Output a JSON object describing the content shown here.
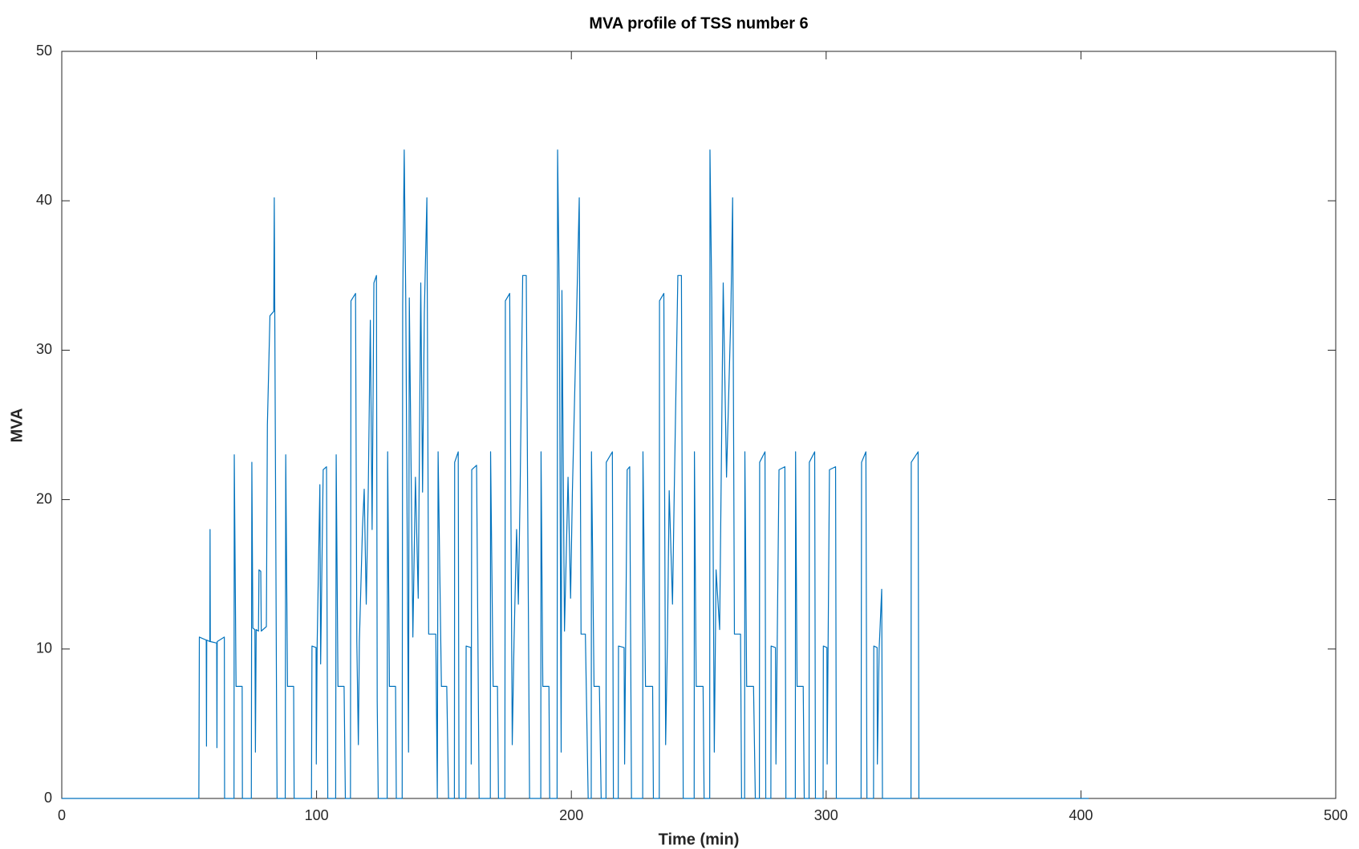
{
  "chart_data": {
    "type": "line",
    "title": "MVA profile of TSS number 6",
    "x_label": "Time (min)",
    "y_label": "MVA",
    "color": "#0072bd",
    "xlim": [
      0,
      500
    ],
    "xticks": [
      0,
      100,
      200,
      300,
      400,
      500
    ],
    "ylim": [
      0,
      50
    ],
    "yticks": [
      0,
      10,
      20,
      30,
      40,
      50
    ],
    "grid": false,
    "box": true,
    "x": [
      0,
      53.8,
      54.0,
      56.7,
      56.8,
      56.9,
      58.1,
      58.2,
      58.3,
      60.8,
      60.9,
      61.0,
      63.8,
      63.9,
      67.6,
      67.7,
      68.4,
      70.8,
      70.9,
      74.4,
      74.6,
      75.0,
      75.8,
      76.0,
      76.3,
      77.2,
      77.4,
      78.1,
      78.3,
      80.3,
      80.7,
      81.7,
      83.2,
      83.4,
      83.6,
      84.3,
      84.5,
      87.7,
      87.9,
      88.6,
      91.0,
      91.2,
      98.0,
      98.2,
      99.8,
      99.9,
      100.2,
      101.3,
      101.6,
      102.6,
      103.9,
      104.4,
      107.5,
      107.7,
      108.4,
      110.8,
      111.3,
      113.3,
      113.5,
      115.3,
      115.8,
      116.4,
      116.8,
      118.0,
      118.7,
      119.5,
      120.3,
      121.1,
      121.8,
      122.5,
      123.5,
      123.8,
      124.2,
      127.7,
      127.9,
      128.6,
      131.0,
      131.3,
      133.6,
      133.8,
      134.4,
      135.0,
      136.1,
      136.4,
      137.8,
      138.8,
      139.9,
      140.9,
      141.6,
      142.3,
      143.3,
      144.0,
      146.8,
      147.4,
      147.7,
      149.0,
      151.1,
      151.8,
      154.1,
      154.2,
      155.6,
      155.9,
      158.6,
      158.7,
      160.6,
      160.7,
      160.9,
      162.8,
      163.8,
      168.2,
      168.3,
      169.3,
      171.0,
      171.4,
      173.9,
      174.1,
      175.8,
      176.8,
      177.5,
      178.5,
      179.2,
      179.9,
      180.9,
      182.3,
      183.6,
      188.0,
      188.1,
      188.8,
      191.2,
      191.5,
      194.4,
      194.6,
      195.3,
      196.0,
      196.3,
      197.3,
      198.7,
      199.7,
      200.4,
      202.1,
      203.1,
      203.8,
      205.5,
      206.6,
      207.8,
      207.9,
      208.9,
      211.0,
      211.7,
      213.6,
      213.7,
      216.1,
      216.5,
      218.4,
      218.5,
      220.7,
      220.9,
      221.9,
      222.9,
      223.6,
      228.0,
      228.1,
      229.1,
      231.9,
      232.2,
      234.5,
      234.6,
      236.3,
      237.0,
      237.7,
      238.4,
      239.7,
      240.4,
      241.8,
      243.2,
      243.9,
      248.2,
      248.3,
      249.0,
      251.7,
      252.1,
      254.3,
      254.4,
      255.1,
      256.1,
      256.8,
      258.2,
      259.6,
      260.9,
      262.6,
      263.3,
      264.0,
      266.4,
      266.8,
      268.0,
      268.1,
      268.8,
      271.5,
      272.2,
      273.8,
      273.9,
      276.0,
      276.3,
      278.3,
      278.4,
      280.1,
      280.3,
      281.5,
      283.8,
      284.2,
      287.9,
      288.0,
      288.6,
      291.0,
      291.4,
      293.3,
      293.4,
      295.5,
      295.8,
      298.8,
      298.9,
      300.3,
      300.4,
      301.3,
      303.7,
      304.0,
      313.7,
      313.9,
      315.6,
      316.0,
      318.6,
      318.7,
      320.0,
      320.1,
      320.8,
      321.8,
      322.1,
      333.3,
      333.4,
      336.1,
      336.4,
      403.0
    ],
    "values": [
      0,
      0,
      10.8,
      10.6,
      3.5,
      10.6,
      10.5,
      18,
      10.5,
      10.4,
      3.4,
      10.5,
      10.8,
      0,
      0,
      23,
      7.5,
      7.5,
      0,
      0,
      22.5,
      11.4,
      11.3,
      3.1,
      11.3,
      11.2,
      15.3,
      15.2,
      11.2,
      11.5,
      25,
      32.3,
      32.6,
      40.2,
      32.5,
      6,
      0,
      0,
      23,
      7.5,
      7.5,
      0,
      0,
      10.2,
      10.1,
      2.3,
      10,
      21,
      9,
      22,
      22.2,
      0,
      0,
      23,
      7.5,
      7.5,
      0,
      0,
      33.3,
      33.8,
      10.5,
      3.6,
      10.5,
      18,
      20.7,
      13,
      20.7,
      32,
      18,
      34.5,
      35,
      6.5,
      0,
      0,
      23.2,
      7.5,
      7.5,
      0,
      0,
      33,
      43.4,
      33.5,
      3.1,
      33.5,
      10.8,
      21.5,
      13.4,
      34.5,
      20.5,
      32.5,
      40.2,
      11,
      11,
      0,
      23.2,
      7.5,
      7.5,
      0,
      0,
      22.5,
      23.2,
      0,
      0,
      10.2,
      10.1,
      2.3,
      22,
      22.3,
      0,
      0,
      23.2,
      7.5,
      7.5,
      0,
      0,
      33.3,
      33.8,
      3.6,
      10.5,
      18,
      13,
      20.7,
      35,
      35,
      0,
      0,
      23.2,
      7.5,
      7.5,
      0,
      0,
      43.4,
      33,
      3.1,
      34,
      11.2,
      21.5,
      13.4,
      20.5,
      32.8,
      40.2,
      11,
      11,
      0,
      0,
      23.2,
      7.5,
      7.5,
      0,
      0,
      22.5,
      23.2,
      0,
      0,
      10.2,
      10.1,
      2.3,
      22,
      22.2,
      0,
      0,
      23.2,
      7.5,
      7.5,
      0,
      0,
      33.3,
      33.8,
      3.6,
      10.5,
      20.6,
      13,
      20.7,
      35,
      35,
      0,
      0,
      23.2,
      7.5,
      7.5,
      0,
      0,
      43.4,
      33.5,
      3.1,
      15.3,
      11.3,
      34.5,
      21.5,
      32.5,
      40.2,
      11,
      11,
      0,
      0,
      23.2,
      7.5,
      7.5,
      0,
      0,
      22.5,
      23.2,
      0,
      0,
      10.2,
      10.1,
      2.3,
      22,
      22.2,
      0,
      0,
      23.2,
      7.5,
      7.5,
      0,
      0,
      22.5,
      23.2,
      0,
      0,
      10.2,
      10.1,
      2.3,
      22,
      22.2,
      0,
      0,
      22.5,
      23.2,
      0,
      0,
      10.2,
      10.1,
      2.3,
      10,
      14,
      0,
      0,
      22.5,
      23.2,
      0,
      0
    ]
  }
}
